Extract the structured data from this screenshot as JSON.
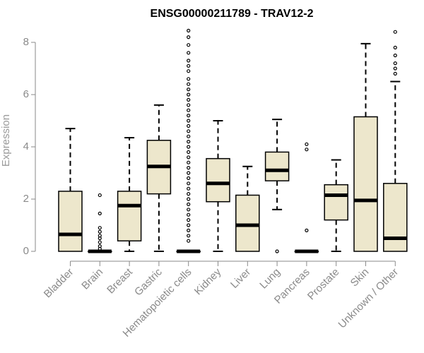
{
  "chart_data": {
    "type": "boxplot",
    "title": "ENSG00000211789 - TRAV12-2",
    "xlabel": "",
    "ylabel": "Expression",
    "ylim": [
      0,
      8.6
    ],
    "yticks": [
      0,
      2,
      4,
      6,
      8
    ],
    "box_fill": "#ede7cc",
    "outline_color": "#000000",
    "tick_color": "#8a8a8a",
    "categories": [
      "Bladder",
      "Brain",
      "Breast",
      "Gastric",
      "Hematopoietic cells",
      "Kidney",
      "Liver",
      "Lung",
      "Pancreas",
      "Prostate",
      "Skin",
      "Unknown / Other"
    ],
    "boxes": [
      {
        "name": "Bladder",
        "min": 0,
        "q1": 0,
        "median": 0.65,
        "q3": 2.3,
        "max": 4.7,
        "outliers": []
      },
      {
        "name": "Brain",
        "min": 0,
        "q1": 0,
        "median": 0,
        "q3": 0,
        "max": 0,
        "outliers": [
          0.1,
          0.2,
          0.35,
          0.5,
          0.6,
          0.75,
          0.9,
          1.45,
          2.15
        ]
      },
      {
        "name": "Breast",
        "min": 0,
        "q1": 0.4,
        "median": 1.75,
        "q3": 2.3,
        "max": 4.35,
        "outliers": []
      },
      {
        "name": "Gastric",
        "min": 0,
        "q1": 2.2,
        "median": 3.25,
        "q3": 4.25,
        "max": 5.6,
        "outliers": []
      },
      {
        "name": "Hematopoietic cells",
        "min": 0,
        "q1": 0,
        "median": 0,
        "q3": 0,
        "max": 0,
        "outliers": [
          0.4,
          0.6,
          0.8,
          1.0,
          1.2,
          1.4,
          1.6,
          1.8,
          2.0,
          2.2,
          2.4,
          2.6,
          2.8,
          3.0,
          3.2,
          3.4,
          3.6,
          3.8,
          4.0,
          4.2,
          4.4,
          4.6,
          4.8,
          5.0,
          5.2,
          5.4,
          5.6,
          5.8,
          6.0,
          6.2,
          6.4,
          6.6,
          6.9,
          7.1,
          7.3,
          7.6,
          7.9,
          8.2,
          8.45
        ]
      },
      {
        "name": "Kidney",
        "min": 0,
        "q1": 1.9,
        "median": 2.6,
        "q3": 3.55,
        "max": 5.0,
        "outliers": []
      },
      {
        "name": "Liver",
        "min": 0,
        "q1": 0,
        "median": 1.0,
        "q3": 2.15,
        "max": 3.25,
        "outliers": []
      },
      {
        "name": "Lung",
        "min": 1.6,
        "q1": 2.7,
        "median": 3.1,
        "q3": 3.8,
        "max": 5.05,
        "outliers": [
          0
        ]
      },
      {
        "name": "Pancreas",
        "min": 0,
        "q1": 0,
        "median": 0,
        "q3": 0,
        "max": 0,
        "outliers": [
          0.8,
          3.9,
          4.1
        ]
      },
      {
        "name": "Prostate",
        "min": 0,
        "q1": 1.2,
        "median": 2.15,
        "q3": 2.55,
        "max": 3.5,
        "outliers": []
      },
      {
        "name": "Skin",
        "min": 0,
        "q1": 0,
        "median": 1.95,
        "q3": 5.15,
        "max": 7.95,
        "outliers": []
      },
      {
        "name": "Unknown / Other",
        "min": 0,
        "q1": 0,
        "median": 0.5,
        "q3": 2.6,
        "max": 6.5,
        "outliers": [
          6.8,
          7.0,
          7.2,
          7.5,
          7.8,
          8.4
        ]
      }
    ]
  }
}
